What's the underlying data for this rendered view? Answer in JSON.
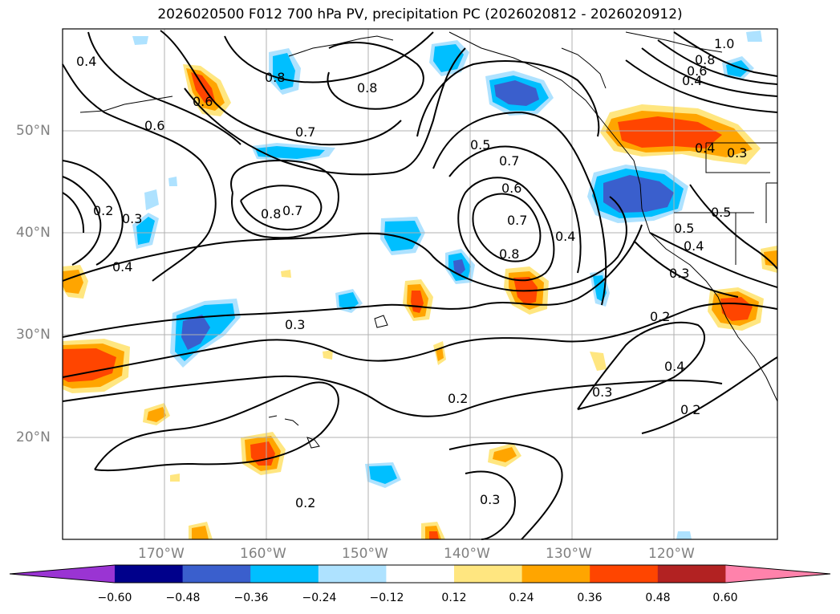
{
  "title": "2026020500 F012 700 hPa PV, precipitation PC (2026020812 - 2026020912)",
  "lat_labels": [
    "50°N",
    "40°N",
    "30°N",
    "20°N"
  ],
  "lon_labels": [
    "170°W",
    "160°W",
    "150°W",
    "140°W",
    "130°W",
    "120°W"
  ],
  "colorbar": {
    "ticks": [
      "−0.60",
      "−0.48",
      "−0.36",
      "−0.24",
      "−0.12",
      "0.12",
      "0.24",
      "0.36",
      "0.48",
      "0.60"
    ],
    "colors": [
      "#9a34d3",
      "#00008b",
      "#3a5fcd",
      "#00bfff",
      "#aee2ff",
      "#ffffff",
      "#ffe680",
      "#ffa500",
      "#ff4500",
      "#b22222",
      "#ff82ab"
    ]
  },
  "contour_labels": [
    "0.4",
    "0.6",
    "0.8",
    "0.8",
    "0.7",
    "0.6",
    "0.2",
    "0.3",
    "0.4",
    "0.8",
    "0.7",
    "0.5",
    "0.7",
    "0.6",
    "0.7",
    "0.8",
    "0.4",
    "1.0",
    "0.8",
    "0.6",
    "0.4",
    "0.4",
    "0.3",
    "0.5",
    "0.5",
    "0.4",
    "0.3",
    "0.3",
    "0.2",
    "0.2",
    "0.3",
    "0.3",
    "0.2",
    "0.4",
    "0.2"
  ],
  "map_extent": {
    "lon_min": -180,
    "lon_max": -110,
    "lat_min": 10,
    "lat_max": 60
  }
}
